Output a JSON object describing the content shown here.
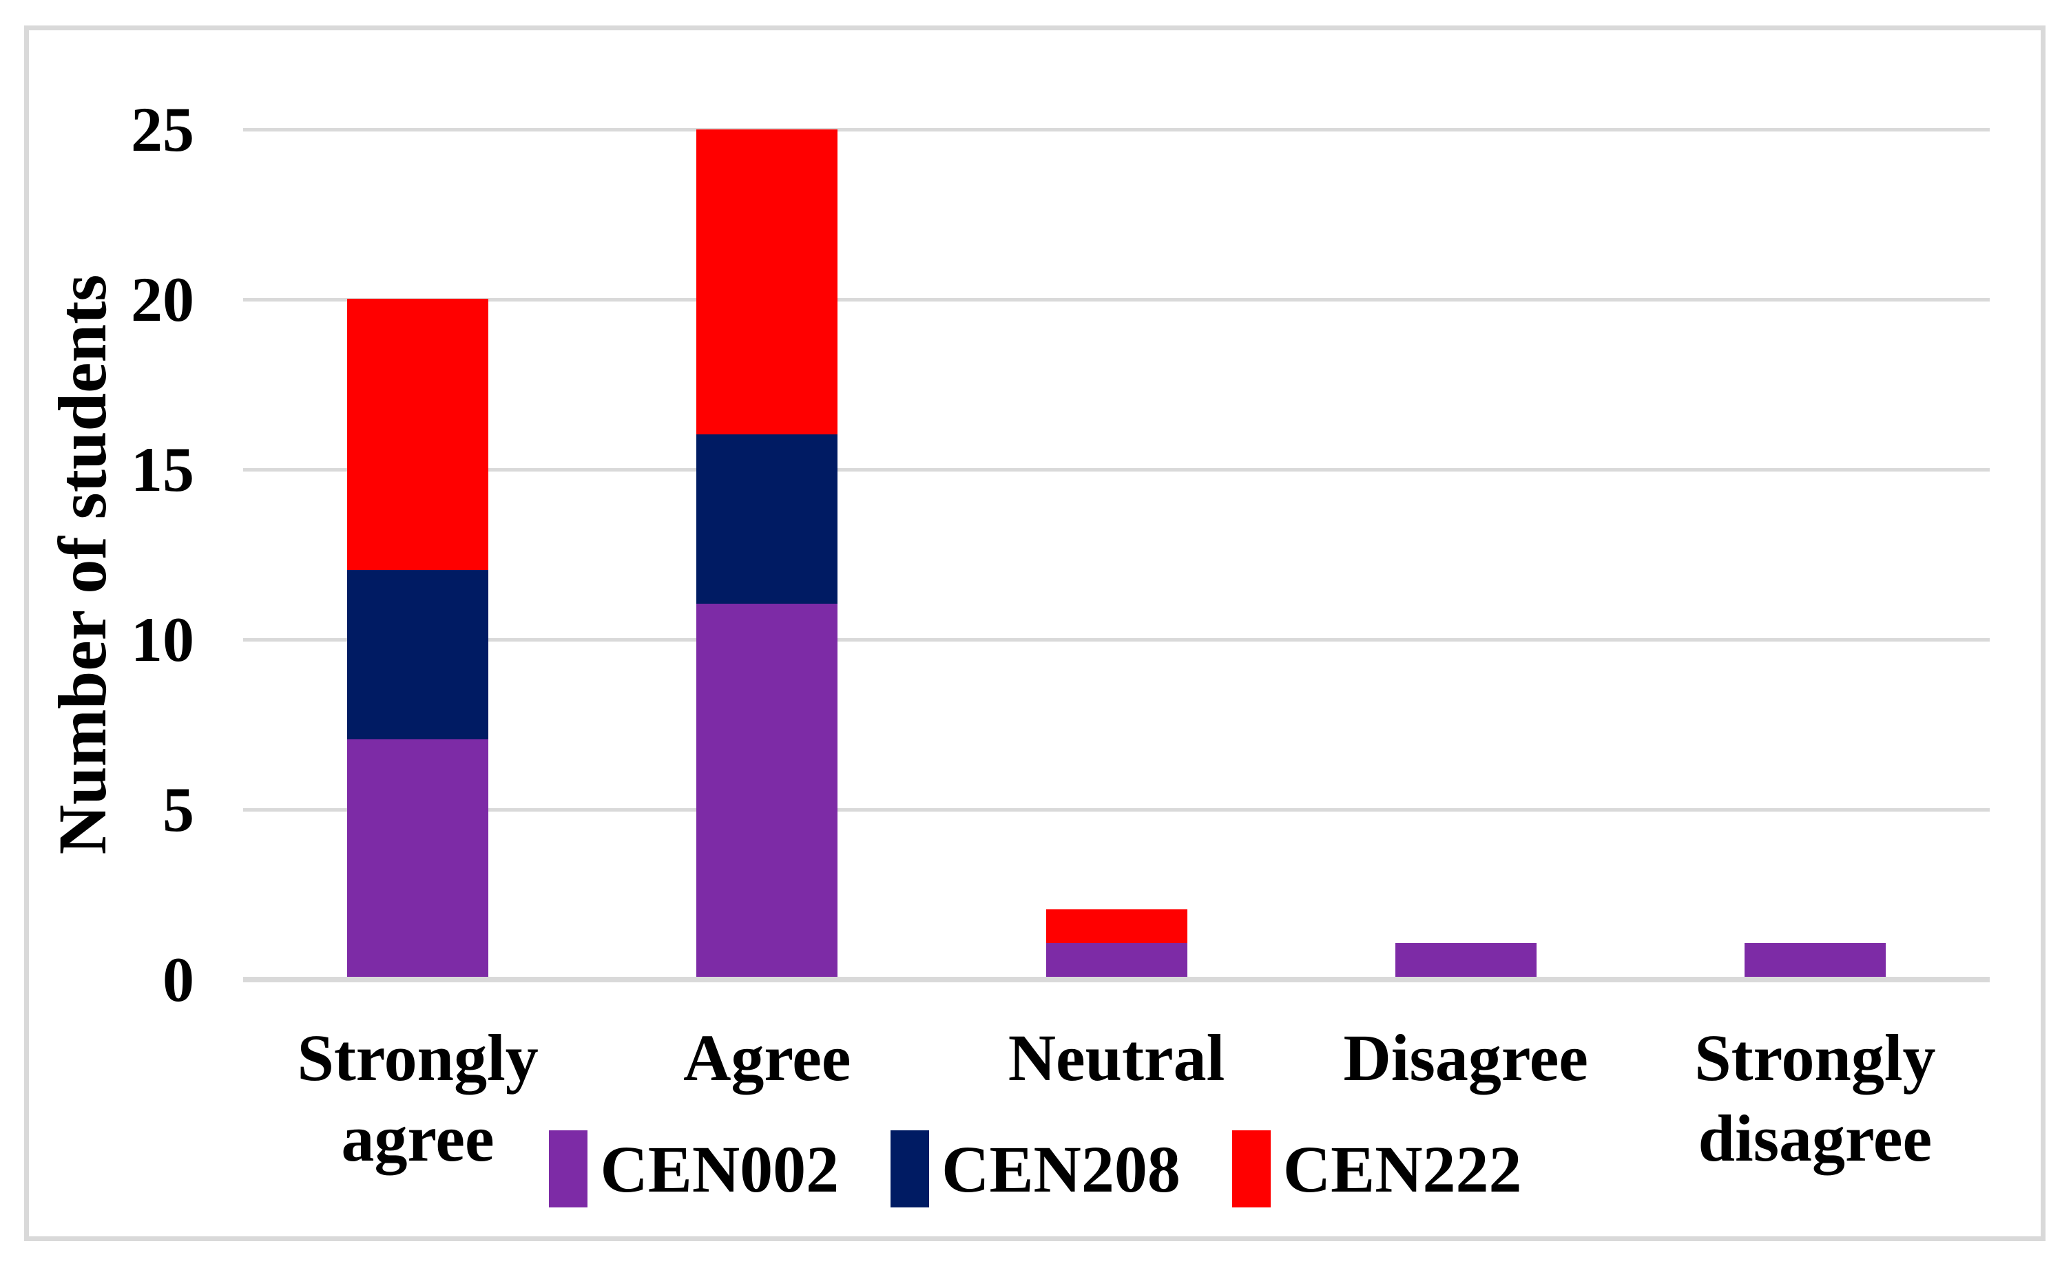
{
  "chart_data": {
    "type": "bar",
    "stacked": true,
    "title": "",
    "xlabel": "",
    "ylabel": "Number of students",
    "categories": [
      "Strongly agree",
      "Agree",
      "Neutral",
      "Disagree",
      "Strongly disagree"
    ],
    "series": [
      {
        "name": "CEN002",
        "color": "#7d2ba6",
        "values": [
          7,
          11,
          1,
          1,
          1
        ]
      },
      {
        "name": "CEN208",
        "color": "#001b63",
        "values": [
          5,
          5,
          0,
          0,
          0
        ]
      },
      {
        "name": "CEN222",
        "color": "#ff0000",
        "values": [
          8,
          9,
          1,
          0,
          0
        ]
      }
    ],
    "totals": [
      20,
      25,
      2,
      1,
      1
    ],
    "ylim": [
      0,
      25
    ],
    "yticks": [
      0,
      5,
      10,
      15,
      20,
      25
    ],
    "grid": true,
    "legend_position": "bottom",
    "colors": {
      "gridline": "#d9d9d9",
      "axis_line": "#d9d9d9",
      "border": "#d9d9d9",
      "text": "#000000",
      "background": "#ffffff"
    }
  }
}
